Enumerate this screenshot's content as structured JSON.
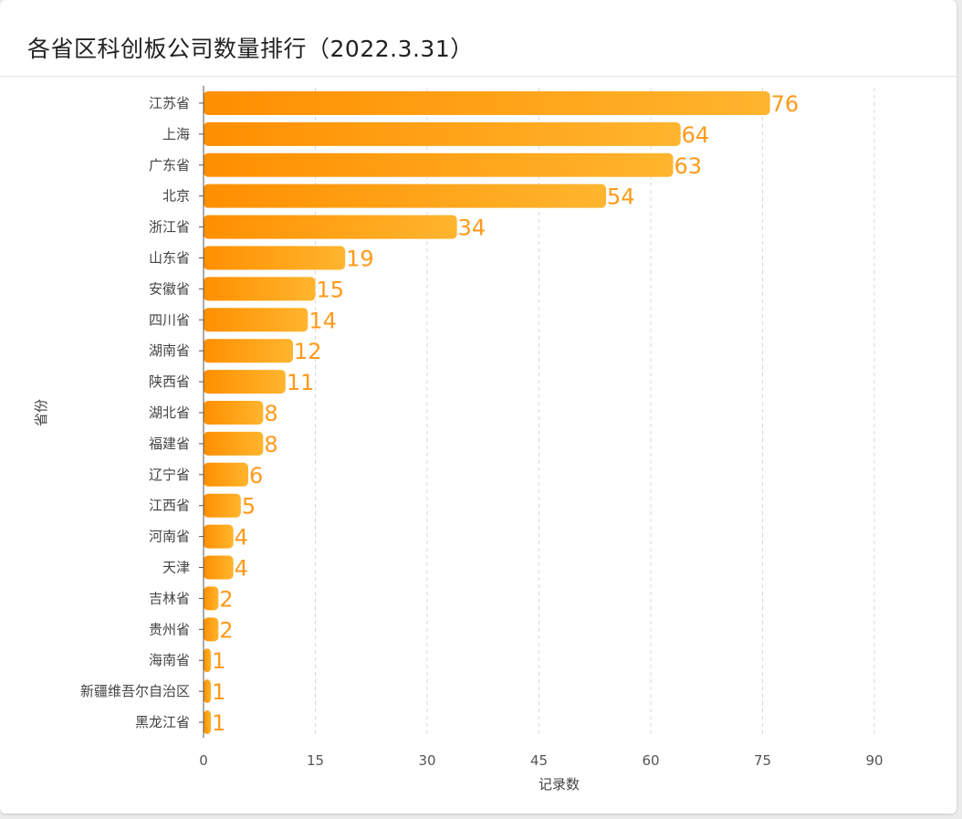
{
  "title": "各省区科创板公司数量排行（2022.3.31）",
  "chart_data": {
    "type": "bar",
    "orientation": "horizontal",
    "title": "各省区科创板公司数量排行（2022.3.31）",
    "xlabel": "记录数",
    "ylabel": "省份",
    "xlim": [
      0,
      90
    ],
    "xticks": [
      0,
      15,
      30,
      45,
      60,
      75,
      90
    ],
    "grid": "vertical dashed",
    "categories": [
      "江苏省",
      "上海",
      "广东省",
      "北京",
      "浙江省",
      "山东省",
      "安徽省",
      "四川省",
      "湖南省",
      "陕西省",
      "湖北省",
      "福建省",
      "辽宁省",
      "江西省",
      "河南省",
      "天津",
      "吉林省",
      "贵州省",
      "海南省",
      "新疆维吾尔自治区",
      "黑龙江省"
    ],
    "values": [
      76,
      64,
      63,
      54,
      34,
      19,
      15,
      14,
      12,
      11,
      8,
      8,
      6,
      5,
      4,
      4,
      2,
      2,
      1,
      1,
      1
    ],
    "colors": {
      "bar_start": "#ff8f00",
      "bar_end": "#ffb52e",
      "label": "#ff9a1a"
    }
  }
}
